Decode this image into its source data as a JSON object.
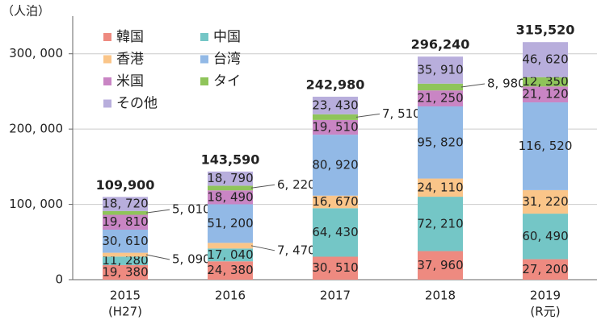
{
  "chart_data": {
    "type": "stacked_bar",
    "y_label": "（人泊）",
    "categories": [
      "2015",
      "2016",
      "2017",
      "2018",
      "2019"
    ],
    "category_notes": [
      "(H27)",
      null,
      null,
      null,
      "(R元)"
    ],
    "series": [
      {
        "name": "韓国",
        "color": "#ee8a80",
        "values": [
          19380,
          24380,
          30510,
          37960,
          27200
        ],
        "value_labels": [
          "19, 380",
          "24, 380",
          "30, 510",
          "37, 960",
          "27, 200"
        ]
      },
      {
        "name": "中国",
        "color": "#74c6c6",
        "values": [
          11280,
          17040,
          64430,
          72210,
          60490
        ],
        "value_labels": [
          "11, 280",
          "17, 040",
          "64, 430",
          "72, 210",
          "60, 490"
        ]
      },
      {
        "name": "香港",
        "color": "#fac589",
        "values": [
          5090,
          7470,
          16670,
          24110,
          31220
        ],
        "value_labels": [
          "5, 090",
          "7, 470",
          "16, 670",
          "24, 110",
          "31, 220"
        ]
      },
      {
        "name": "台湾",
        "color": "#92b9e6",
        "values": [
          30610,
          51200,
          80920,
          95820,
          116520
        ],
        "value_labels": [
          "30, 610",
          "51, 200",
          "80, 920",
          "95, 820",
          "116, 520"
        ]
      },
      {
        "name": "米国",
        "color": "#c985c4",
        "values": [
          19810,
          18490,
          19510,
          21250,
          21120
        ],
        "value_labels": [
          "19, 810",
          "18, 490",
          "19, 510",
          "21, 250",
          "21, 120"
        ]
      },
      {
        "name": "タイ",
        "color": "#8fc45a",
        "values": [
          5010,
          6220,
          7510,
          8980,
          12350
        ],
        "value_labels": [
          "5, 010",
          "6, 220",
          "7, 510",
          "8, 980",
          "12, 350"
        ]
      },
      {
        "name": "その他",
        "color": "#b8aedc",
        "values": [
          18720,
          18790,
          23430,
          35910,
          46620
        ],
        "value_labels": [
          "18, 720",
          "18, 790",
          "23, 430",
          "35, 910",
          "46, 620"
        ]
      }
    ],
    "totals": [
      109900,
      143590,
      242980,
      296240,
      315520
    ],
    "total_labels": [
      "109,900",
      "143,590",
      "242,980",
      "296,240",
      "315,520"
    ],
    "ylim": [
      0,
      350000
    ],
    "yticks": [
      0,
      {
        "value": 100000,
        "label": "100, 000"
      },
      {
        "value": 200000,
        "label": "200, 000"
      },
      {
        "value": 300000,
        "label": "300, 000"
      }
    ],
    "grid": true,
    "legend": "upper-left"
  }
}
